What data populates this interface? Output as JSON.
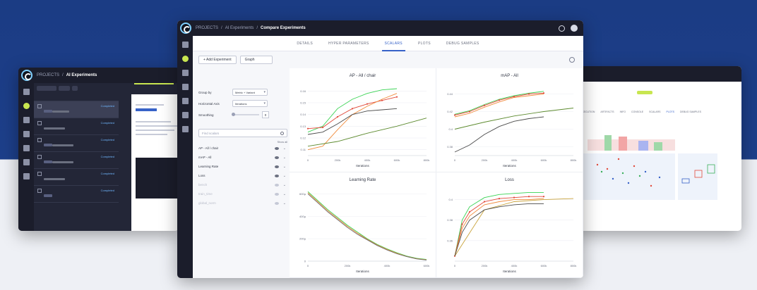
{
  "main": {
    "breadcrumb": [
      "PROJECTS",
      "AI Experiments"
    ],
    "page": "Compare Experiments",
    "tabs": [
      {
        "label": "DETAILS"
      },
      {
        "label": "HYPER PARAMETERS"
      },
      {
        "label": "SCALARS"
      },
      {
        "label": "PLOTS"
      },
      {
        "label": "DEBUG SAMPLES"
      }
    ],
    "active_tab": "SCALARS",
    "add_experiment": "+ Add Experiment",
    "view_mode": "Graph",
    "controls": {
      "group_by_label": "Group by",
      "group_by_value": "Metric + Variant",
      "horizontal_axis_label": "Horizontal Axis",
      "horizontal_axis_value": "Iterations",
      "smoothing_label": "Smoothing",
      "smoothing_value": "0",
      "find_placeholder": "Find scalars",
      "show_all": "Show all"
    },
    "metrics": [
      {
        "label": "AP - All / chair",
        "visible": true
      },
      {
        "label": "mAP - All",
        "visible": true
      },
      {
        "label": "Learning Rate",
        "visible": true
      },
      {
        "label": "Loss",
        "visible": true
      },
      {
        "label": "bench",
        "visible": false
      },
      {
        "label": "train_time",
        "visible": false
      },
      {
        "label": "global_norm",
        "visible": false
      }
    ]
  },
  "plots": [
    {
      "title": "AP - All / chair",
      "xlabel": "Iterations"
    },
    {
      "title": "mAP - All",
      "xlabel": "Iterations"
    },
    {
      "title": "Learning Rate",
      "xlabel": "Iterations"
    },
    {
      "title": "Loss",
      "xlabel": "Iterations"
    }
  ],
  "chart_data": [
    {
      "type": "line",
      "title": "AP - All / chair",
      "xlabel": "Iterations",
      "x_ticks": [
        "0",
        "200k",
        "400k",
        "600k",
        "800k"
      ],
      "y_ticks": [
        "0.11",
        "0.12",
        "0.13",
        "0.14",
        "0.15",
        "0.16"
      ],
      "ylim": [
        0.105,
        0.165
      ],
      "series": [
        {
          "color": "#39d353",
          "x": [
            0,
            100000,
            200000,
            300000,
            400000,
            500000,
            600000
          ],
          "values": [
            0.125,
            0.13,
            0.145,
            0.153,
            0.158,
            0.161,
            0.162
          ]
        },
        {
          "color": "#e14a3b",
          "x": [
            0,
            100000,
            200000,
            300000,
            400000,
            500000,
            600000
          ],
          "values": [
            0.128,
            0.129,
            0.138,
            0.145,
            0.149,
            0.152,
            0.155
          ]
        },
        {
          "color": "#f08b3c",
          "x": [
            0,
            100000,
            200000,
            300000,
            400000,
            500000,
            600000
          ],
          "values": [
            0.11,
            0.113,
            0.127,
            0.14,
            0.147,
            0.153,
            0.158
          ]
        },
        {
          "color": "#4a4a4a",
          "x": [
            0,
            100000,
            200000,
            300000,
            400000,
            500000,
            600000
          ],
          "values": [
            0.123,
            0.125,
            0.132,
            0.14,
            0.143,
            0.144,
            0.145
          ]
        },
        {
          "color": "#5c8a2e",
          "x": [
            0,
            200000,
            400000,
            600000,
            800000
          ],
          "values": [
            0.113,
            0.117,
            0.124,
            0.13,
            0.137
          ]
        }
      ]
    },
    {
      "type": "line",
      "title": "mAP - All",
      "xlabel": "Iterations",
      "x_ticks": [
        "0",
        "200k",
        "400k",
        "600k",
        "800k"
      ],
      "y_ticks": [
        "0.38",
        "0.4",
        "0.42",
        "0.44"
      ],
      "ylim": [
        0.37,
        0.45
      ],
      "series": [
        {
          "color": "#39d353",
          "x": [
            0,
            100000,
            200000,
            300000,
            400000,
            500000,
            600000
          ],
          "values": [
            0.417,
            0.421,
            0.428,
            0.434,
            0.438,
            0.441,
            0.443
          ]
        },
        {
          "color": "#e14a3b",
          "x": [
            0,
            100000,
            200000,
            300000,
            400000,
            500000,
            600000
          ],
          "values": [
            0.416,
            0.42,
            0.427,
            0.433,
            0.437,
            0.44,
            0.441
          ]
        },
        {
          "color": "#f08b3c",
          "x": [
            0,
            100000,
            200000,
            300000,
            400000,
            500000,
            600000
          ],
          "values": [
            0.414,
            0.418,
            0.425,
            0.431,
            0.436,
            0.438,
            0.44
          ]
        },
        {
          "color": "#5c8a2e",
          "x": [
            0,
            200000,
            400000,
            600000,
            800000
          ],
          "values": [
            0.4,
            0.408,
            0.415,
            0.42,
            0.424
          ]
        },
        {
          "color": "#4a4a4a",
          "x": [
            0,
            100000,
            200000,
            300000,
            400000,
            500000,
            600000
          ],
          "values": [
            0.374,
            0.382,
            0.394,
            0.403,
            0.409,
            0.412,
            0.414
          ]
        }
      ]
    },
    {
      "type": "line",
      "title": "Learning Rate",
      "xlabel": "Iterations",
      "x_ticks": [
        "0",
        "200k",
        "400k",
        "600k"
      ],
      "y_ticks": [
        "0",
        "200µ",
        "400µ",
        "600µ"
      ],
      "ylim": [
        0,
        640
      ],
      "series": [
        {
          "color": "#39d353",
          "x": [
            0,
            50000,
            100000,
            150000,
            200000,
            250000,
            300000,
            350000,
            400000,
            450000,
            500000,
            550000,
            600000
          ],
          "values": [
            620,
            540,
            460,
            390,
            320,
            260,
            200,
            150,
            110,
            75,
            45,
            25,
            15
          ]
        },
        {
          "color": "#f08b3c",
          "x": [
            0,
            50000,
            100000,
            150000,
            200000,
            250000,
            300000,
            350000,
            400000,
            450000,
            500000,
            550000,
            600000
          ],
          "values": [
            610,
            530,
            450,
            380,
            310,
            250,
            195,
            145,
            105,
            70,
            42,
            22,
            12
          ]
        },
        {
          "color": "#6b6b6b",
          "x": [
            0,
            50000,
            100000,
            150000,
            200000,
            250000,
            300000,
            350000,
            400000,
            450000,
            500000,
            550000,
            600000
          ],
          "values": [
            600,
            520,
            440,
            370,
            300,
            240,
            190,
            140,
            100,
            66,
            40,
            20,
            10
          ]
        }
      ]
    },
    {
      "type": "line",
      "title": "Loss",
      "xlabel": "Iterations",
      "x_ticks": [
        "0",
        "200k",
        "400k",
        "600k",
        "800k"
      ],
      "y_ticks": [
        "0.36",
        "0.38",
        "0.4"
      ],
      "ylim": [
        0.34,
        0.41
      ],
      "series": [
        {
          "color": "#39d353",
          "x": [
            0,
            50000,
            100000,
            200000,
            300000,
            400000,
            500000,
            600000
          ],
          "values": [
            0.345,
            0.38,
            0.393,
            0.402,
            0.405,
            0.406,
            0.407,
            0.407
          ]
        },
        {
          "color": "#e14a3b",
          "x": [
            0,
            50000,
            100000,
            200000,
            300000,
            400000,
            500000,
            600000
          ],
          "values": [
            0.345,
            0.376,
            0.388,
            0.398,
            0.401,
            0.402,
            0.403,
            0.403
          ]
        },
        {
          "color": "#f08b3c",
          "x": [
            0,
            50000,
            100000,
            200000,
            300000,
            400000,
            500000,
            600000
          ],
          "values": [
            0.345,
            0.372,
            0.384,
            0.395,
            0.398,
            0.4,
            0.4,
            0.401
          ]
        },
        {
          "color": "#c9a33c",
          "x": [
            0,
            200000,
            400000,
            600000,
            800000
          ],
          "values": [
            0.345,
            0.39,
            0.398,
            0.4,
            0.401
          ]
        },
        {
          "color": "#4a4a4a",
          "x": [
            0,
            50000,
            100000,
            200000,
            300000,
            400000,
            500000,
            600000
          ],
          "values": [
            0.345,
            0.368,
            0.38,
            0.39,
            0.393,
            0.395,
            0.396,
            0.396
          ]
        }
      ]
    }
  ],
  "left_window": {
    "breadcrumb": [
      "PROJECTS",
      "AI Experiments"
    ],
    "experiments": [
      {
        "status": "Completed",
        "selected": true
      },
      {
        "status": "Completed",
        "selected": false
      },
      {
        "status": "Completed",
        "selected": false
      },
      {
        "status": "Completed",
        "selected": false
      },
      {
        "status": "Completed",
        "selected": false
      },
      {
        "status": "Completed",
        "selected": false
      }
    ]
  },
  "right_window": {
    "tabs": [
      "EXECUTION",
      "ARTIFACTS",
      "INFO",
      "CONSOLE",
      "SCALARS",
      "PLOTS",
      "DEBUG SAMPLES"
    ]
  },
  "colors": {
    "accent": "#3762c8",
    "brand": "#c8e650",
    "nav": "#1b1d2b"
  }
}
